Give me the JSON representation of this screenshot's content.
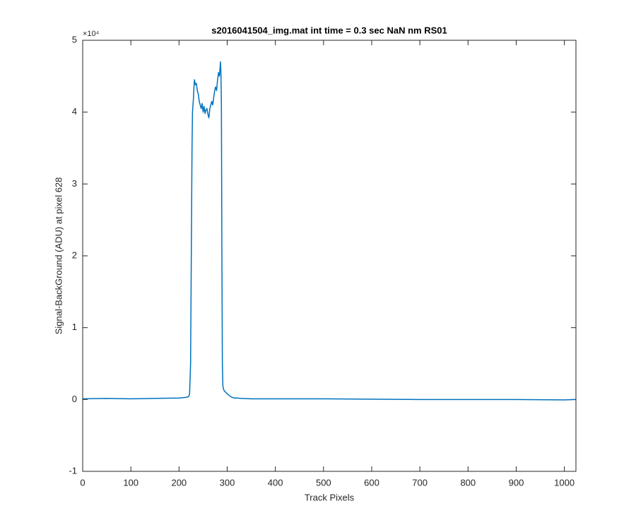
{
  "chart_data": {
    "type": "line",
    "title": "s2016041504_img.mat int time = 0.3 sec  NaN nm RS01",
    "x_label": "Track Pixels",
    "y_label": "Signal-BackGround (ADU) at pixel 628",
    "y_exponent_label": "×10⁴",
    "color": "#0072bd",
    "box": true,
    "grid": false,
    "x": [
      0,
      50,
      100,
      150,
      200,
      215,
      220,
      222,
      224,
      226,
      227,
      228,
      229,
      230,
      231,
      232,
      234,
      236,
      238,
      240,
      242,
      244,
      246,
      248,
      250,
      252,
      254,
      256,
      258,
      260,
      262,
      264,
      266,
      268,
      270,
      272,
      274,
      276,
      278,
      280,
      282,
      284,
      285,
      286,
      287,
      288,
      289,
      290,
      291,
      292,
      294,
      297,
      300,
      305,
      310,
      315,
      320,
      330,
      350,
      400,
      500,
      600,
      700,
      800,
      900,
      1000,
      1023
    ],
    "values": [
      0.01,
      0.015,
      0.01,
      0.015,
      0.02,
      0.03,
      0.04,
      0.08,
      0.5,
      2.5,
      3.5,
      4.0,
      4.1,
      4.2,
      4.35,
      4.45,
      4.38,
      4.4,
      4.3,
      4.25,
      4.15,
      4.1,
      4.05,
      4.12,
      4.0,
      4.08,
      3.98,
      4.03,
      4.05,
      3.97,
      3.92,
      4.05,
      4.1,
      4.15,
      4.1,
      4.2,
      4.3,
      4.35,
      4.3,
      4.45,
      4.55,
      4.5,
      4.6,
      4.7,
      4.55,
      4.1,
      2.0,
      0.5,
      0.2,
      0.15,
      0.12,
      0.1,
      0.08,
      0.05,
      0.03,
      0.02,
      0.02,
      0.015,
      0.01,
      0.01,
      0.01,
      0.005,
      0.0,
      0.0,
      0.0,
      -0.005,
      0.0
    ],
    "xlim": [
      0,
      1024
    ],
    "ylim": [
      -1,
      5
    ],
    "xticks": [
      0,
      100,
      200,
      300,
      400,
      500,
      600,
      700,
      800,
      900,
      1000
    ],
    "yticks": [
      -1,
      0,
      1,
      2,
      3,
      4,
      5
    ]
  }
}
